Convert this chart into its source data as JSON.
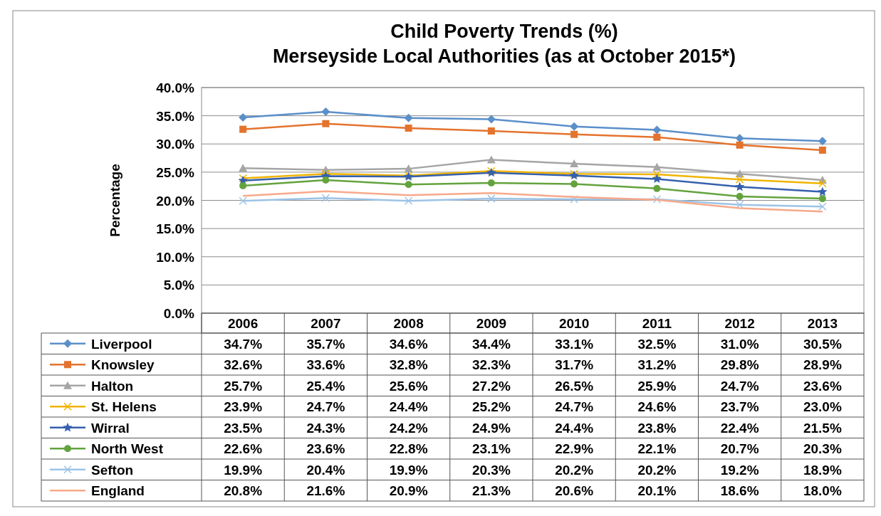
{
  "chart_data": {
    "type": "line",
    "title": "Child Poverty Trends (%)",
    "subtitle": "Merseyside Local Authorities (as at October 2015*)",
    "ylabel": "Percentage",
    "categories": [
      "2006",
      "2007",
      "2008",
      "2009",
      "2010",
      "2011",
      "2012",
      "2013"
    ],
    "ylim": [
      0,
      40
    ],
    "yticks": [
      {
        "value": 0,
        "label": "0.0%"
      },
      {
        "value": 5,
        "label": "5.0%"
      },
      {
        "value": 10,
        "label": "10.0%"
      },
      {
        "value": 15,
        "label": "15.0%"
      },
      {
        "value": 20,
        "label": "20.0%"
      },
      {
        "value": 25,
        "label": "25.0%"
      },
      {
        "value": 30,
        "label": "30.0%"
      },
      {
        "value": 35,
        "label": "35.0%"
      },
      {
        "value": 40,
        "label": "40.0%"
      }
    ],
    "grid": "y",
    "legend": "bottom",
    "line_style": "solid",
    "series": [
      {
        "name": "Liverpool",
        "color": "#5b8fc9",
        "marker": "diamond",
        "values": [
          34.7,
          35.7,
          34.6,
          34.4,
          33.1,
          32.5,
          31.0,
          30.5
        ],
        "value_labels": [
          "34.7%",
          "35.7%",
          "34.6%",
          "34.4%",
          "33.1%",
          "32.5%",
          "31.0%",
          "30.5%"
        ]
      },
      {
        "name": "Knowsley",
        "color": "#e4732e",
        "marker": "square",
        "values": [
          32.6,
          33.6,
          32.8,
          32.3,
          31.7,
          31.2,
          29.8,
          28.9
        ],
        "value_labels": [
          "32.6%",
          "33.6%",
          "32.8%",
          "32.3%",
          "31.7%",
          "31.2%",
          "29.8%",
          "28.9%"
        ]
      },
      {
        "name": "Halton",
        "color": "#a5a5a5",
        "marker": "triangle",
        "values": [
          25.7,
          25.4,
          25.6,
          27.2,
          26.5,
          25.9,
          24.7,
          23.6
        ],
        "value_labels": [
          "25.7%",
          "25.4%",
          "25.6%",
          "27.2%",
          "26.5%",
          "25.9%",
          "24.7%",
          "23.6%"
        ]
      },
      {
        "name": "St. Helens",
        "color": "#f0b400",
        "marker": "cross",
        "values": [
          23.9,
          24.7,
          24.4,
          25.2,
          24.7,
          24.6,
          23.7,
          23.0
        ],
        "value_labels": [
          "23.9%",
          "24.7%",
          "24.4%",
          "25.2%",
          "24.7%",
          "24.6%",
          "23.7%",
          "23.0%"
        ]
      },
      {
        "name": "Wirral",
        "color": "#3560ad",
        "marker": "star",
        "values": [
          23.5,
          24.3,
          24.2,
          24.9,
          24.4,
          23.8,
          22.4,
          21.5
        ],
        "value_labels": [
          "23.5%",
          "24.3%",
          "24.2%",
          "24.9%",
          "24.4%",
          "23.8%",
          "22.4%",
          "21.5%"
        ]
      },
      {
        "name": "North West",
        "color": "#63a33d",
        "marker": "circle",
        "values": [
          22.6,
          23.6,
          22.8,
          23.1,
          22.9,
          22.1,
          20.7,
          20.3
        ],
        "value_labels": [
          "22.6%",
          "23.6%",
          "22.8%",
          "23.1%",
          "22.9%",
          "22.1%",
          "20.7%",
          "20.3%"
        ]
      },
      {
        "name": "Sefton",
        "color": "#9dc3e6",
        "marker": "cross",
        "values": [
          19.9,
          20.4,
          19.9,
          20.3,
          20.2,
          20.2,
          19.2,
          18.9
        ],
        "value_labels": [
          "19.9%",
          "20.4%",
          "19.9%",
          "20.3%",
          "20.2%",
          "20.2%",
          "19.2%",
          "18.9%"
        ]
      },
      {
        "name": "England",
        "color": "#f7a98a",
        "marker": "none",
        "values": [
          20.8,
          21.6,
          20.9,
          21.3,
          20.6,
          20.1,
          18.6,
          18.0
        ],
        "value_labels": [
          "20.8%",
          "21.6%",
          "20.9%",
          "21.3%",
          "20.6%",
          "20.1%",
          "18.6%",
          "18.0%"
        ]
      }
    ]
  }
}
